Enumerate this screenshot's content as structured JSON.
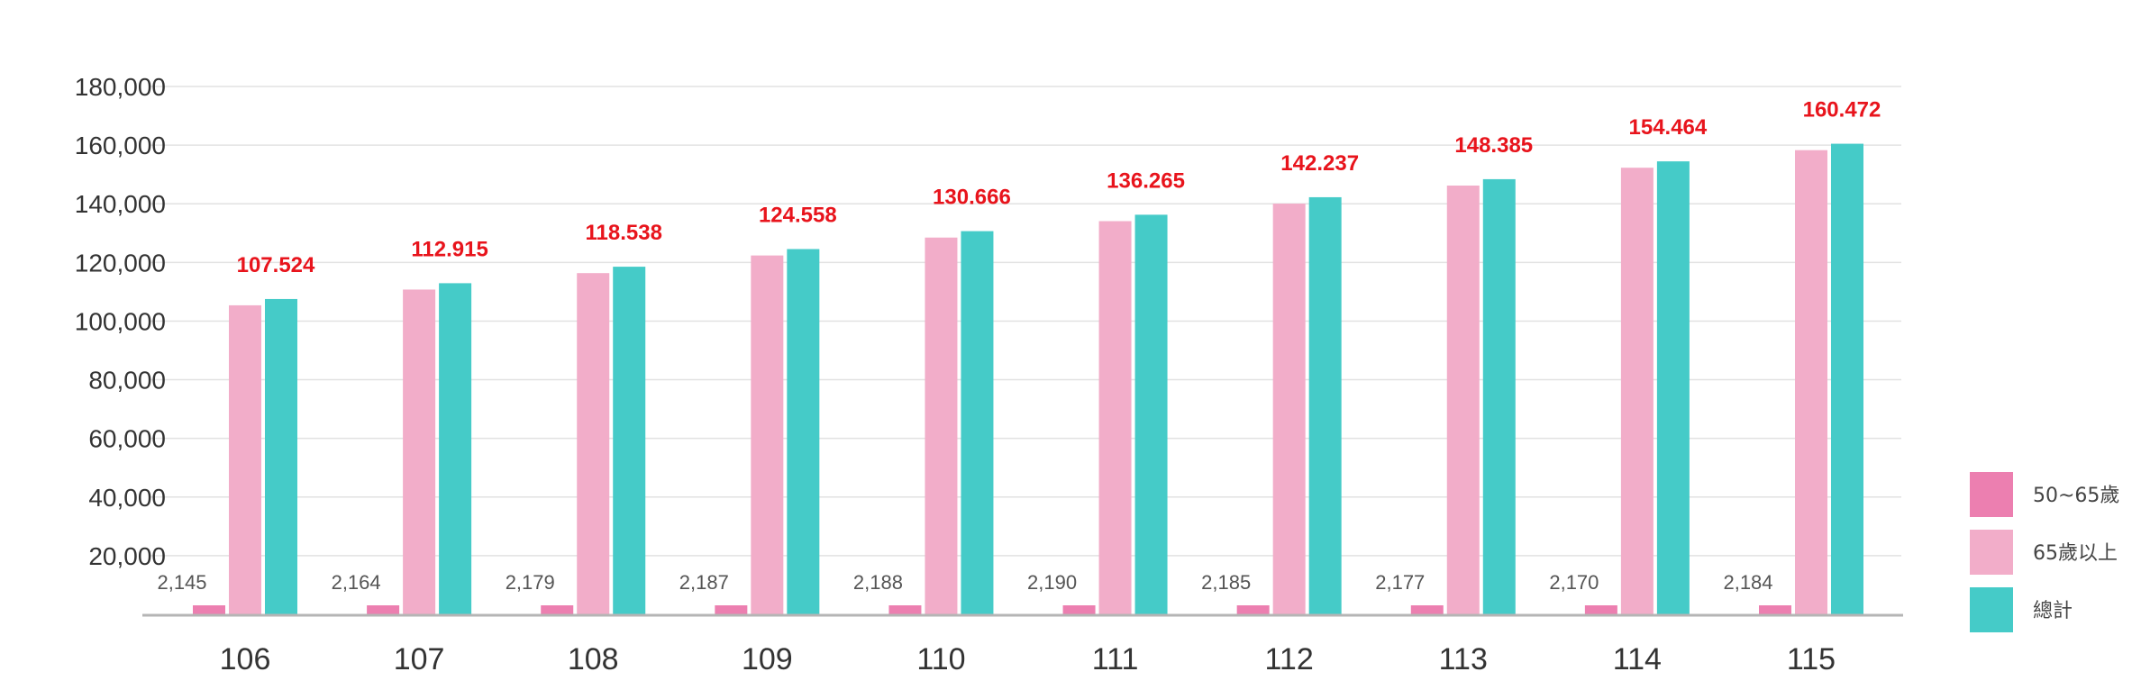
{
  "chart_data": {
    "type": "bar",
    "categories": [
      "106",
      "107",
      "108",
      "109",
      "110",
      "111",
      "112",
      "113",
      "114",
      "115"
    ],
    "series": [
      {
        "name": "50~65歲",
        "values": [
          2145,
          2164,
          2179,
          2187,
          2188,
          2190,
          2185,
          2177,
          2170,
          2184
        ],
        "labels": [
          "2,145",
          "2,164",
          "2,179",
          "2,187",
          "2,188",
          "2,190",
          "2,185",
          "2,177",
          "2,170",
          "2,184"
        ],
        "color": "#ec7fb0"
      },
      {
        "name": "65歲以上",
        "values": [
          105379,
          110751,
          116359,
          122371,
          128478,
          134075,
          140052,
          146208,
          152294,
          158288
        ],
        "color": "#f2adc9"
      },
      {
        "name": "總計",
        "values": [
          107524,
          112915,
          118538,
          124558,
          130666,
          136265,
          142237,
          148385,
          154464,
          160472
        ],
        "labels": [
          "107.524",
          "112.915",
          "118.538",
          "124.558",
          "130.666",
          "136.265",
          "142.237",
          "148.385",
          "154.464",
          "160.472"
        ],
        "color": "#45cbc8"
      }
    ],
    "yticks": [
      {
        "value": 20000,
        "label": "20,000"
      },
      {
        "value": 40000,
        "label": "40,000"
      },
      {
        "value": 60000,
        "label": "60,000"
      },
      {
        "value": 80000,
        "label": "80,000"
      },
      {
        "value": 100000,
        "label": "100,000"
      },
      {
        "value": 120000,
        "label": "120,000"
      },
      {
        "value": 140000,
        "label": "140,000"
      },
      {
        "value": 160000,
        "label": "160,000"
      },
      {
        "value": 180000,
        "label": "180,000"
      }
    ],
    "ylim": [
      0,
      180000
    ],
    "grid": true,
    "legend_position": "bottom-right",
    "title": "",
    "xlabel": "",
    "ylabel": ""
  }
}
